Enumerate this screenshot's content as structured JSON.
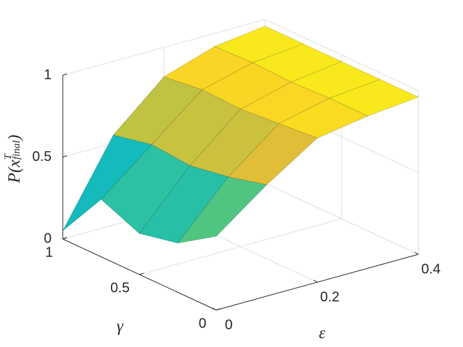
{
  "chart_data": {
    "type": "surface",
    "xlabel": "ε",
    "ylabel": "γ",
    "zlabel": {
      "base": "P(x",
      "sup": "T",
      "sub": "final",
      "close": ")"
    },
    "x": [
      0,
      0.1,
      0.2,
      0.3,
      0.4
    ],
    "y": [
      0,
      0.25,
      0.5,
      0.75,
      1
    ],
    "z": [
      [
        0.45,
        0.68,
        0.88,
        0.93,
        0.96
      ],
      [
        0.3,
        0.62,
        0.86,
        0.93,
        0.96
      ],
      [
        0.25,
        0.58,
        0.84,
        0.92,
        0.96
      ],
      [
        0.35,
        0.6,
        0.85,
        0.93,
        0.96
      ],
      [
        0.05,
        0.55,
        0.82,
        0.92,
        0.96
      ]
    ],
    "xlim": [
      0,
      0.4
    ],
    "xticks": [
      0,
      0.2,
      0.4
    ],
    "ylim": [
      0,
      1
    ],
    "yticks": [
      0,
      0.5,
      1
    ],
    "zlim": [
      0,
      1
    ],
    "zticks": [
      0,
      0.5,
      1
    ],
    "grid": true,
    "colormap": [
      "#3e26a8",
      "#2e87f7",
      "#13beb8",
      "#80cb58",
      "#f9bb2f",
      "#f9fb15"
    ]
  }
}
